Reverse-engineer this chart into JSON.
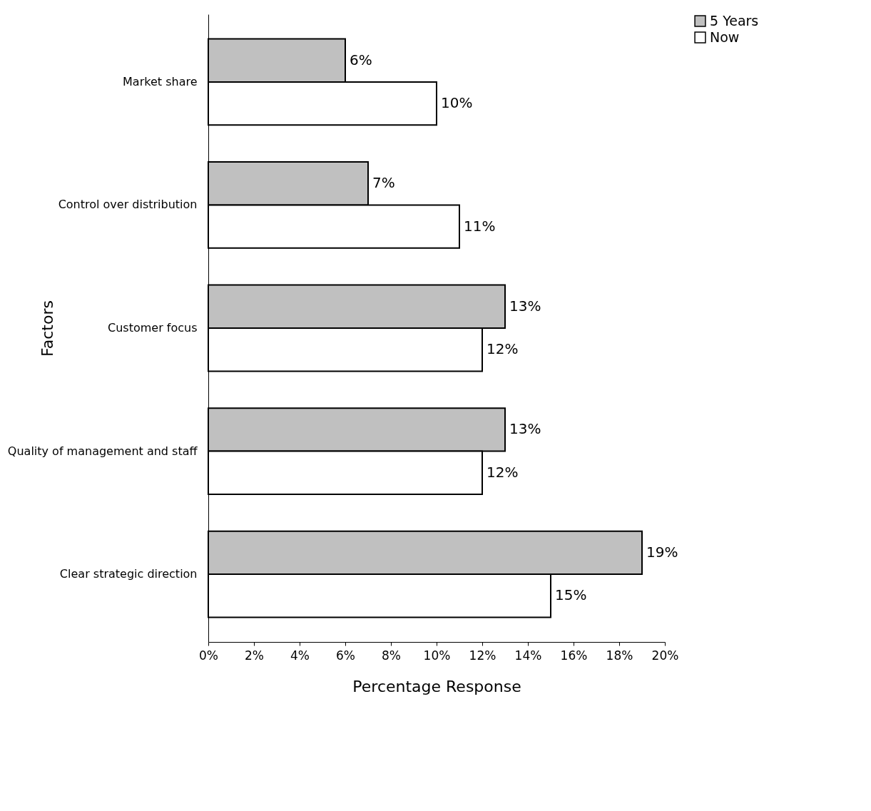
{
  "chart_data": {
    "type": "bar",
    "orientation": "horizontal",
    "xlabel": "Percentage Response",
    "ylabel": "Factors",
    "categories": [
      "Market share",
      "Control over distribution",
      "Customer focus",
      "Quality of management and staff",
      "Clear strategic direction"
    ],
    "series": [
      {
        "name": "5 Years",
        "color": "#c0c0c0",
        "values": [
          6,
          7,
          13,
          13,
          19
        ],
        "value_labels": [
          "6%",
          "7%",
          "13%",
          "13%",
          "19%"
        ]
      },
      {
        "name": "Now",
        "color": "#ffffff",
        "values": [
          10,
          11,
          12,
          12,
          15
        ],
        "value_labels": [
          "10%",
          "11%",
          "12%",
          "12%",
          "15%"
        ]
      }
    ],
    "xlim": [
      0,
      20
    ],
    "xticks": [
      {
        "value": 0,
        "label": "0%"
      },
      {
        "value": 2,
        "label": "2%"
      },
      {
        "value": 4,
        "label": "4%"
      },
      {
        "value": 6,
        "label": "6%"
      },
      {
        "value": 8,
        "label": "8%"
      },
      {
        "value": 10,
        "label": "10%"
      },
      {
        "value": 12,
        "label": "12%"
      },
      {
        "value": 14,
        "label": "14%"
      },
      {
        "value": 16,
        "label": "16%"
      },
      {
        "value": 18,
        "label": "18%"
      },
      {
        "value": 20,
        "label": "20%"
      }
    ],
    "legend": "right"
  }
}
